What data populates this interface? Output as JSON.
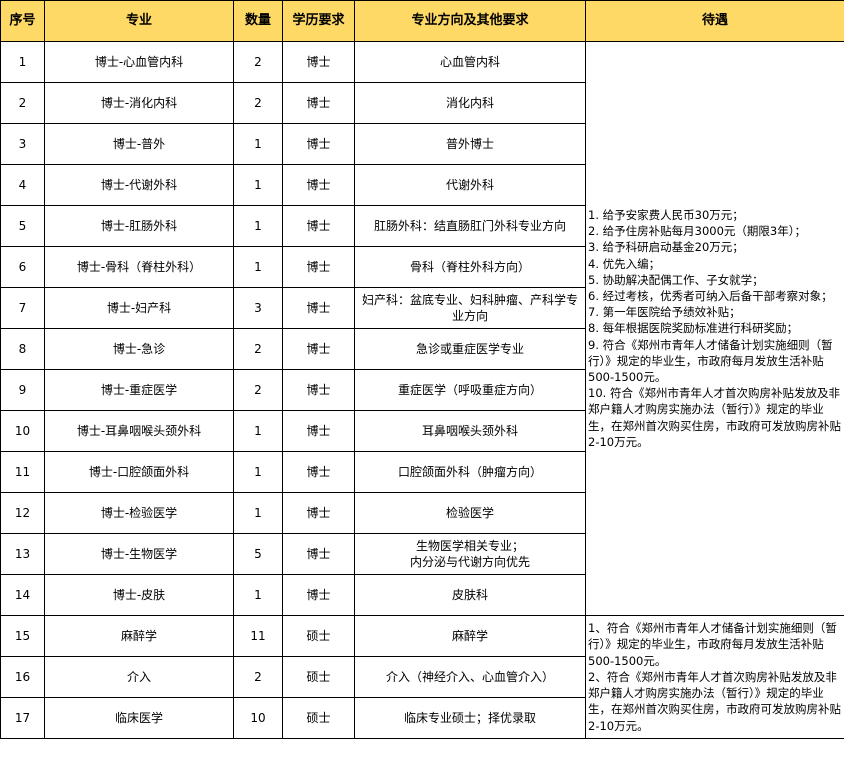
{
  "colors": {
    "header_bg": "#FFD966"
  },
  "headers": [
    "序号",
    "专业",
    "数量",
    "学历要求",
    "专业方向及其他要求",
    "待遇"
  ],
  "rows": [
    {
      "no": "1",
      "major": "博士-心血管内科",
      "count": "2",
      "degree": "博士",
      "direction": "心血管内科"
    },
    {
      "no": "2",
      "major": "博士-消化内科",
      "count": "2",
      "degree": "博士",
      "direction": "消化内科"
    },
    {
      "no": "3",
      "major": "博士-普外",
      "count": "1",
      "degree": "博士",
      "direction": "普外博士"
    },
    {
      "no": "4",
      "major": "博士-代谢外科",
      "count": "1",
      "degree": "博士",
      "direction": "代谢外科"
    },
    {
      "no": "5",
      "major": "博士-肛肠外科",
      "count": "1",
      "degree": "博士",
      "direction": "肛肠外科：结直肠肛门外科专业方向"
    },
    {
      "no": "6",
      "major": "博士-骨科（脊柱外科）",
      "count": "1",
      "degree": "博士",
      "direction": "骨科（脊柱外科方向）"
    },
    {
      "no": "7",
      "major": "博士-妇产科",
      "count": "3",
      "degree": "博士",
      "direction": "妇产科：盆底专业、妇科肿瘤、产科学专业方向"
    },
    {
      "no": "8",
      "major": "博士-急诊",
      "count": "2",
      "degree": "博士",
      "direction": "急诊或重症医学专业"
    },
    {
      "no": "9",
      "major": "博士-重症医学",
      "count": "2",
      "degree": "博士",
      "direction": "重症医学（呼吸重症方向）"
    },
    {
      "no": "10",
      "major": "博士-耳鼻咽喉头颈外科",
      "count": "1",
      "degree": "博士",
      "direction": "耳鼻咽喉头颈外科"
    },
    {
      "no": "11",
      "major": "博士-口腔颌面外科",
      "count": "1",
      "degree": "博士",
      "direction": "口腔颌面外科（肿瘤方向）"
    },
    {
      "no": "12",
      "major": "博士-检验医学",
      "count": "1",
      "degree": "博士",
      "direction": "检验医学"
    },
    {
      "no": "13",
      "major": "博士-生物医学",
      "count": "5",
      "degree": "博士",
      "direction": "生物医学相关专业；\n内分泌与代谢方向优先"
    },
    {
      "no": "14",
      "major": "博士-皮肤",
      "count": "1",
      "degree": "博士",
      "direction": "皮肤科"
    },
    {
      "no": "15",
      "major": "麻醉学",
      "count": "11",
      "degree": "硕士",
      "direction": "麻醉学"
    },
    {
      "no": "16",
      "major": "介入",
      "count": "2",
      "degree": "硕士",
      "direction": "介入（神经介入、心血管介入）"
    },
    {
      "no": "17",
      "major": "临床医学",
      "count": "10",
      "degree": "硕士",
      "direction": "临床专业硕士；择优录取"
    }
  ],
  "benefits_doctor": "1. 给予安家费人民币30万元；\n2. 给予住房补贴每月3000元（期限3年）；\n3. 给予科研启动基金20万元；\n4. 优先入编；\n5. 协助解决配偶工作、子女就学；\n6. 经过考核，优秀者可纳入后备干部考察对象；\n7. 第一年医院给予绩效补贴；\n8. 每年根据医院奖励标准进行科研奖励；\n9. 符合《郑州市青年人才储备计划实施细则（暂行）》规定的毕业生，市政府每月发放生活补贴500-1500元。\n10. 符合《郑州市青年人才首次购房补贴发放及非郑户籍人才购房实施办法（暂行）》规定的毕业生，在郑州首次购买住房，市政府可发放购房补贴2-10万元。",
  "benefits_master": "1、符合《郑州市青年人才储备计划实施细则（暂行）》规定的毕业生，市政府每月发放生活补贴500-1500元。\n2、符合《郑州市青年人才首次购房补贴发放及非郑户籍人才购房实施办法（暂行）》规定的毕业生，在郑州首次购买住房，市政府可发放购房补贴2-10万元。"
}
